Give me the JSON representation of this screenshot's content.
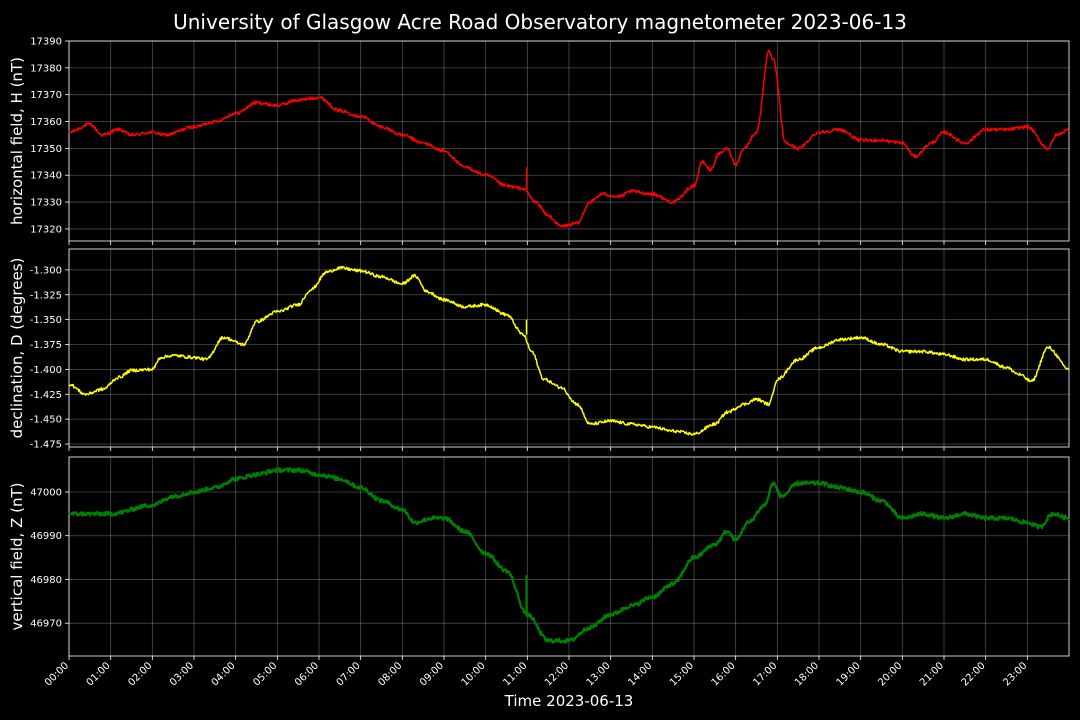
{
  "chart_data": {
    "type": "line",
    "title": "University of Glasgow Acre Road Observatory magnetometer 2023-06-13",
    "xlabel": "Time 2023-06-13",
    "x_ticks": [
      "00:00",
      "01:00",
      "02:00",
      "03:00",
      "04:00",
      "05:00",
      "06:00",
      "07:00",
      "08:00",
      "09:00",
      "10:00",
      "11:00",
      "12:00",
      "13:00",
      "14:00",
      "15:00",
      "16:00",
      "17:00",
      "18:00",
      "19:00",
      "20:00",
      "21:00",
      "22:00",
      "23:00"
    ],
    "xlim_hours": [
      0,
      24
    ],
    "grid": true,
    "background": "#000000",
    "panels": [
      {
        "ylabel": "horizontal field, H (nT)",
        "color": "#ff0000",
        "ylim": [
          17315.5,
          17390
        ],
        "yticks": [
          17320,
          17330,
          17340,
          17350,
          17360,
          17370,
          17380,
          17390
        ],
        "tick_decimals": 0,
        "noise": 0.6,
        "points": [
          [
            0,
            17356
          ],
          [
            0.5,
            17359
          ],
          [
            0.8,
            17355
          ],
          [
            1.2,
            17357
          ],
          [
            1.5,
            17355
          ],
          [
            2,
            17356
          ],
          [
            2.3,
            17355
          ],
          [
            3,
            17358
          ],
          [
            3.5,
            17360
          ],
          [
            4,
            17363
          ],
          [
            4.5,
            17367
          ],
          [
            5,
            17366
          ],
          [
            5.5,
            17368
          ],
          [
            6,
            17369
          ],
          [
            6.5,
            17364
          ],
          [
            7,
            17362
          ],
          [
            7.5,
            17358
          ],
          [
            8,
            17355
          ],
          [
            8.5,
            17352
          ],
          [
            9,
            17349
          ],
          [
            9.5,
            17343
          ],
          [
            10,
            17340
          ],
          [
            10.5,
            17336
          ],
          [
            10.9,
            17335
          ],
          [
            11.2,
            17330
          ],
          [
            11.5,
            17325
          ],
          [
            11.8,
            17321
          ],
          [
            12.2,
            17322
          ],
          [
            12.5,
            17330
          ],
          [
            12.8,
            17333
          ],
          [
            13.2,
            17332
          ],
          [
            13.5,
            17334
          ],
          [
            14,
            17333
          ],
          [
            14.5,
            17330
          ],
          [
            15,
            17336
          ],
          [
            15.2,
            17345
          ],
          [
            15.4,
            17342
          ],
          [
            15.6,
            17348
          ],
          [
            15.8,
            17350
          ],
          [
            16,
            17344
          ],
          [
            16.2,
            17350
          ],
          [
            16.5,
            17356
          ],
          [
            16.8,
            17386
          ],
          [
            16.9,
            17383
          ],
          [
            17.2,
            17352
          ],
          [
            17.5,
            17350
          ],
          [
            18,
            17356
          ],
          [
            18.5,
            17357
          ],
          [
            19,
            17353
          ],
          [
            19.5,
            17353
          ],
          [
            20,
            17352
          ],
          [
            20.3,
            17347
          ],
          [
            20.7,
            17352
          ],
          [
            21,
            17356
          ],
          [
            21.5,
            17352
          ],
          [
            22,
            17357
          ],
          [
            22.5,
            17357
          ],
          [
            23,
            17358
          ],
          [
            23.5,
            17350
          ],
          [
            23.7,
            17355
          ],
          [
            24,
            17357
          ]
        ],
        "spikes": [
          [
            10.98,
            17343
          ]
        ]
      },
      {
        "ylabel": "declination, D (degrees)",
        "color": "#ffff00",
        "ylim": [
          -1.478,
          -1.279
        ],
        "yticks": [
          -1.3,
          -1.325,
          -1.35,
          -1.375,
          -1.4,
          -1.425,
          -1.45,
          -1.475
        ],
        "tick_decimals": 3,
        "noise": 0.0015,
        "points": [
          [
            0,
            -1.415
          ],
          [
            0.4,
            -1.425
          ],
          [
            0.8,
            -1.42
          ],
          [
            1.2,
            -1.408
          ],
          [
            1.5,
            -1.401
          ],
          [
            2,
            -1.4
          ],
          [
            2.2,
            -1.388
          ],
          [
            2.5,
            -1.386
          ],
          [
            3,
            -1.388
          ],
          [
            3.3,
            -1.39
          ],
          [
            3.7,
            -1.368
          ],
          [
            4.2,
            -1.375
          ],
          [
            4.5,
            -1.352
          ],
          [
            5,
            -1.342
          ],
          [
            5.5,
            -1.335
          ],
          [
            5.8,
            -1.32
          ],
          [
            6.2,
            -1.302
          ],
          [
            6.5,
            -1.298
          ],
          [
            7,
            -1.301
          ],
          [
            7.5,
            -1.307
          ],
          [
            8,
            -1.314
          ],
          [
            8.3,
            -1.306
          ],
          [
            8.6,
            -1.322
          ],
          [
            9,
            -1.33
          ],
          [
            9.5,
            -1.337
          ],
          [
            10,
            -1.335
          ],
          [
            10.5,
            -1.345
          ],
          [
            10.9,
            -1.365
          ],
          [
            11.1,
            -1.382
          ],
          [
            11.4,
            -1.41
          ],
          [
            11.8,
            -1.418
          ],
          [
            12.2,
            -1.435
          ],
          [
            12.5,
            -1.455
          ],
          [
            13,
            -1.452
          ],
          [
            13.5,
            -1.455
          ],
          [
            14,
            -1.458
          ],
          [
            14.5,
            -1.462
          ],
          [
            15,
            -1.465
          ],
          [
            15.5,
            -1.455
          ],
          [
            15.8,
            -1.443
          ],
          [
            16.2,
            -1.435
          ],
          [
            16.5,
            -1.43
          ],
          [
            16.8,
            -1.435
          ],
          [
            17,
            -1.41
          ],
          [
            17.5,
            -1.39
          ],
          [
            18,
            -1.378
          ],
          [
            18.5,
            -1.37
          ],
          [
            19,
            -1.368
          ],
          [
            19.5,
            -1.375
          ],
          [
            20,
            -1.382
          ],
          [
            20.5,
            -1.382
          ],
          [
            21,
            -1.385
          ],
          [
            21.5,
            -1.39
          ],
          [
            22,
            -1.39
          ],
          [
            22.5,
            -1.398
          ],
          [
            22.8,
            -1.405
          ],
          [
            23.1,
            -1.412
          ],
          [
            23.5,
            -1.378
          ],
          [
            24,
            -1.4
          ]
        ],
        "spikes": [
          [
            10.98,
            -1.35
          ]
        ]
      },
      {
        "ylabel": "vertical field, Z (nT)",
        "color": "#008000",
        "ylim": [
          46962.5,
          47008
        ],
        "yticks": [
          46970,
          46980,
          46990,
          47000
        ],
        "tick_decimals": 0,
        "noise": 0.45,
        "points": [
          [
            0,
            46995
          ],
          [
            0.5,
            46995
          ],
          [
            1,
            46995
          ],
          [
            2,
            46997
          ],
          [
            2.5,
            46999
          ],
          [
            3,
            47000
          ],
          [
            3.5,
            47001
          ],
          [
            4,
            47003
          ],
          [
            4.5,
            47004
          ],
          [
            5,
            47005
          ],
          [
            5.5,
            47005
          ],
          [
            6,
            47004
          ],
          [
            6.5,
            47003
          ],
          [
            7,
            47001
          ],
          [
            7.5,
            46998
          ],
          [
            8,
            46996
          ],
          [
            8.3,
            46993
          ],
          [
            8.7,
            46994
          ],
          [
            9,
            46994
          ],
          [
            9.5,
            46991
          ],
          [
            10,
            46986
          ],
          [
            10.5,
            46982
          ],
          [
            11,
            46972
          ],
          [
            11.5,
            46966
          ],
          [
            12,
            46966
          ],
          [
            12.5,
            46969
          ],
          [
            13,
            46972
          ],
          [
            13.5,
            46974
          ],
          [
            14,
            46976
          ],
          [
            14.5,
            46979
          ],
          [
            15,
            46985
          ],
          [
            15.5,
            46988
          ],
          [
            15.8,
            46991
          ],
          [
            16,
            46989
          ],
          [
            16.3,
            46993
          ],
          [
            16.7,
            46997
          ],
          [
            16.9,
            47002
          ],
          [
            17.1,
            46999
          ],
          [
            17.5,
            47002
          ],
          [
            18,
            47002
          ],
          [
            18.5,
            47001
          ],
          [
            19,
            47000
          ],
          [
            19.5,
            46998
          ],
          [
            20,
            46994
          ],
          [
            20.5,
            46995
          ],
          [
            21,
            46994
          ],
          [
            21.5,
            46995
          ],
          [
            22,
            46994
          ],
          [
            22.5,
            46994
          ],
          [
            23,
            46993
          ],
          [
            23.3,
            46992
          ],
          [
            23.6,
            46995
          ],
          [
            24,
            46994
          ]
        ],
        "spikes": [
          [
            10.98,
            46981
          ]
        ]
      }
    ]
  }
}
